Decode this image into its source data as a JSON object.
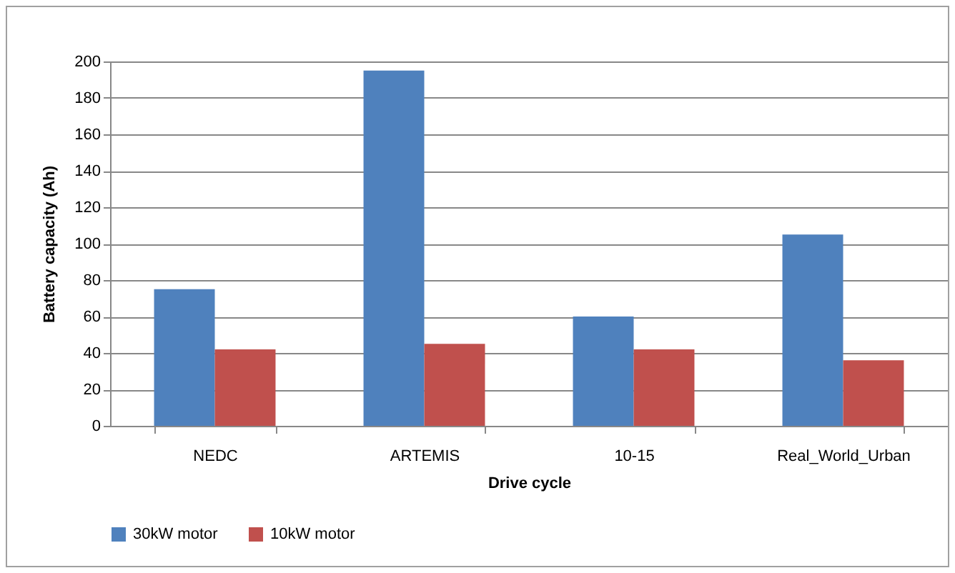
{
  "chart_data": {
    "type": "bar",
    "xlabel": "Drive cycle",
    "ylabel": "Battery capacity  (Ah)",
    "categories": [
      "NEDC",
      "ARTEMIS",
      "10-15",
      "Real_World_Urban"
    ],
    "series": [
      {
        "name": "30kW motor",
        "color": "#4f81bd",
        "values": [
          75,
          195,
          60,
          105
        ]
      },
      {
        "name": "10kW motor",
        "color": "#c0504d",
        "values": [
          42,
          45,
          42,
          36
        ]
      }
    ],
    "ylim": [
      0,
      200
    ],
    "yticks": [
      0,
      20,
      40,
      60,
      80,
      100,
      120,
      140,
      160,
      180,
      200
    ],
    "grid": "y",
    "legend": "bottom"
  }
}
